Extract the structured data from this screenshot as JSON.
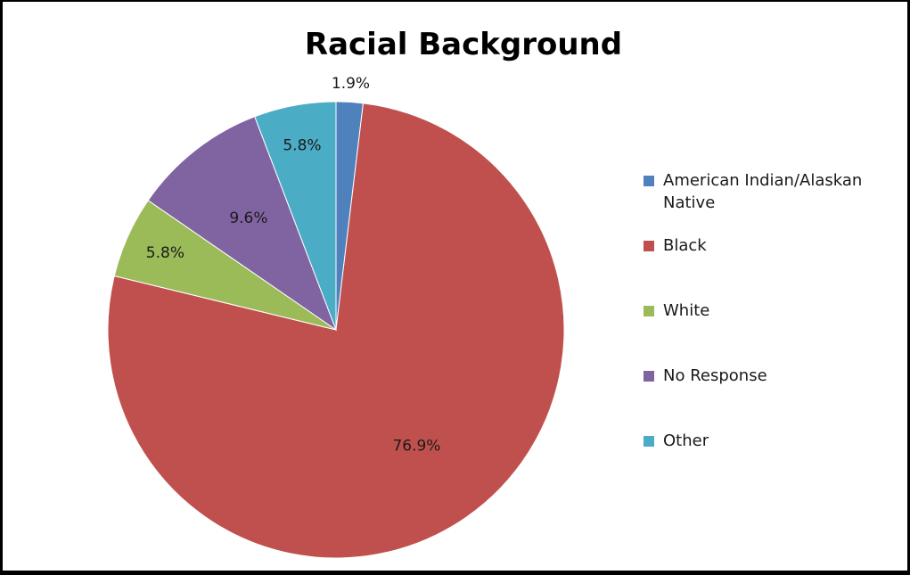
{
  "chart_data": {
    "type": "pie",
    "title": "Racial Background",
    "categories": [
      "American Indian/Alaskan Native",
      "Black",
      "White",
      "No Response",
      "Other"
    ],
    "values": [
      1.9,
      76.9,
      5.8,
      9.6,
      5.8
    ],
    "labels": [
      "1.9%",
      "76.9%",
      "5.8%",
      "9.6%",
      "5.8%"
    ],
    "colors": [
      "#4F81BD",
      "#C0504D",
      "#9BBB59",
      "#8064A2",
      "#4BACC6"
    ],
    "legend_position": "right",
    "legend": [
      {
        "label": "American Indian/Alaskan",
        "label2": "Native",
        "color": "#4F81BD"
      },
      {
        "label": "Black",
        "color": "#C0504D"
      },
      {
        "label": "White",
        "color": "#9BBB59"
      },
      {
        "label": "No Response",
        "color": "#8064A2"
      },
      {
        "label": "Other",
        "color": "#4BACC6"
      }
    ]
  }
}
